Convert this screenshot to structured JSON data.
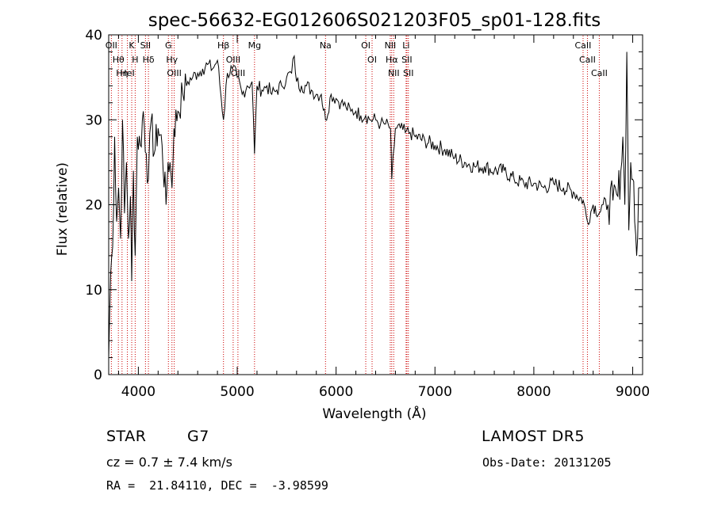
{
  "chart_data": {
    "type": "line",
    "title": "spec-56632-EG012606S021203F05_sp01-128.fits",
    "xlabel": "Wavelength (Å)",
    "ylabel": "Flux (relative)",
    "xlim": [
      3700,
      9100
    ],
    "ylim": [
      0,
      40
    ],
    "xticks": [
      4000,
      5000,
      6000,
      7000,
      8000,
      9000
    ],
    "yticks": [
      0,
      10,
      20,
      30,
      40
    ],
    "series": [
      {
        "x": [
          3700,
          3720,
          3740,
          3760,
          3780,
          3800,
          3820,
          3840,
          3860,
          3880,
          3900,
          3920,
          3933,
          3950,
          3968,
          3990,
          4020,
          4050,
          4080,
          4102,
          4130,
          4160,
          4200,
          4240,
          4280,
          4300,
          4320,
          4340,
          4360,
          4400,
          4450,
          4500,
          4550,
          4600,
          4650,
          4700,
          4750,
          4800,
          4861,
          4900,
          4950,
          5000,
          5050,
          5100,
          5150,
          5175,
          5200,
          5250,
          5300,
          5350,
          5400,
          5450,
          5500,
          5550,
          5577,
          5600,
          5650,
          5700,
          5750,
          5800,
          5850,
          5893,
          5950,
          6000,
          6050,
          6100,
          6150,
          6200,
          6250,
          6300,
          6350,
          6400,
          6450,
          6500,
          6550,
          6563,
          6600,
          6650,
          6700,
          6750,
          6800,
          6900,
          7000,
          7100,
          7200,
          7300,
          7400,
          7500,
          7600,
          7700,
          7800,
          7900,
          8000,
          8100,
          8200,
          8300,
          8400,
          8500,
          8542,
          8600,
          8662,
          8700,
          8750,
          8800,
          8850,
          8880,
          8900,
          8920,
          8940,
          8960,
          8980,
          9000,
          9020,
          9040,
          9060
        ],
        "y": [
          2,
          12,
          15,
          28,
          18,
          22,
          16,
          30,
          19,
          25,
          16,
          21,
          11,
          24,
          14,
          28,
          27,
          31,
          26,
          23,
          30,
          26,
          29,
          27,
          20,
          25,
          25,
          22,
          29,
          31,
          33,
          34.5,
          35,
          35.5,
          36,
          36.5,
          36,
          37,
          30,
          35.5,
          36,
          35,
          33,
          34,
          34.5,
          26,
          34,
          33.5,
          34,
          33,
          33.5,
          34,
          35,
          35.5,
          37.5,
          34.5,
          34,
          34,
          33.5,
          33,
          33,
          30,
          33,
          32.5,
          32,
          31.5,
          31,
          31,
          30.5,
          30.5,
          30,
          30,
          29.5,
          29.5,
          29,
          23,
          29,
          29,
          28.5,
          28.5,
          28,
          27.5,
          27,
          26.5,
          25.5,
          25,
          24.5,
          24.5,
          24,
          24,
          23,
          22.5,
          22.5,
          22,
          22.5,
          22,
          21.5,
          20.5,
          18,
          20,
          19,
          20,
          20,
          20.5,
          21,
          24,
          28,
          20,
          38,
          17,
          25,
          23,
          18,
          14,
          22
        ]
      }
    ],
    "lines": [
      {
        "w": 3727,
        "label": "OII"
      },
      {
        "w": 3798,
        "label": "Hθ"
      },
      {
        "w": 3835,
        "label": "Hη"
      },
      {
        "w": 3889,
        "label": "HeI"
      },
      {
        "w": 3933,
        "label": "K"
      },
      {
        "w": 3968,
        "label": "H"
      },
      {
        "w": 4072,
        "label": "SII"
      },
      {
        "w": 4102,
        "label": "Hδ"
      },
      {
        "w": 4304,
        "label": "G"
      },
      {
        "w": 4340,
        "label": "Hγ"
      },
      {
        "w": 4363,
        "label": "OIII"
      },
      {
        "w": 4861,
        "label": "Hβ"
      },
      {
        "w": 4959,
        "label": "OIII"
      },
      {
        "w": 5007,
        "label": "OIII"
      },
      {
        "w": 5175,
        "label": "Mg"
      },
      {
        "w": 5893,
        "label": "Na"
      },
      {
        "w": 6300,
        "label": "OI"
      },
      {
        "w": 6364,
        "label": "OI"
      },
      {
        "w": 6548,
        "label": "NII"
      },
      {
        "w": 6563,
        "label": "Hα"
      },
      {
        "w": 6583,
        "label": "NII"
      },
      {
        "w": 6708,
        "label": "Li"
      },
      {
        "w": 6716,
        "label": "SII"
      },
      {
        "w": 6731,
        "label": "SII"
      },
      {
        "w": 8498,
        "label": "CaII"
      },
      {
        "w": 8542,
        "label": "CaII"
      },
      {
        "w": 8662,
        "label": "CaII"
      }
    ]
  },
  "info": {
    "object_class": "STAR",
    "subclass": "G7",
    "survey": "LAMOST DR5",
    "redshift": "cz = 0.7 ± 7.4 km/s",
    "obs_date": "Obs-Date: 20131205",
    "coords": "RA =  21.84110, DEC =  -3.98599"
  },
  "colors": {
    "spectrum": "#000000",
    "line_marker": "#cc0000",
    "text": "#000000"
  }
}
